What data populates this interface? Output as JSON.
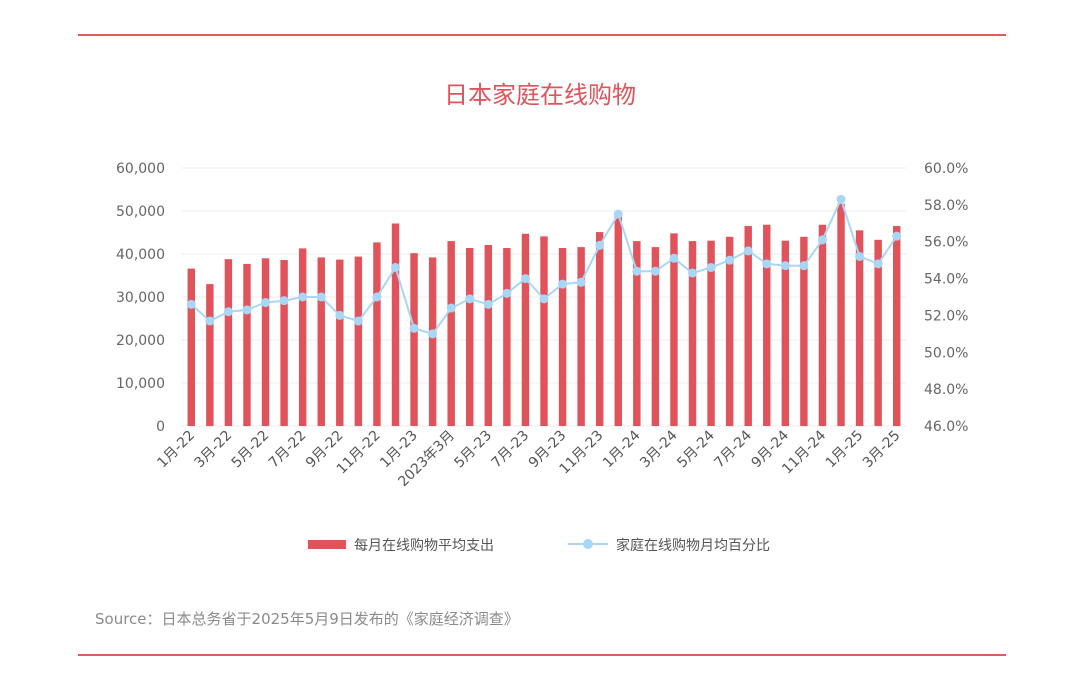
{
  "chart_data": {
    "type": "bar",
    "title": "日本家庭在线购物",
    "categories": [
      "1月-22",
      "2月-22",
      "3月-22",
      "4月-22",
      "5月-22",
      "6月-22",
      "7月-22",
      "8月-22",
      "9月-22",
      "10月-22",
      "11月-22",
      "12月-22",
      "1月-23",
      "2月-23",
      "2023年3月",
      "4月-23",
      "5月-23",
      "6月-23",
      "7月-23",
      "8月-23",
      "9月-23",
      "10月-23",
      "11月-23",
      "12月-23",
      "1月-24",
      "2月-24",
      "3月-24",
      "4月-24",
      "5月-24",
      "6月-24",
      "7月-24",
      "8月-24",
      "9月-24",
      "10月-24",
      "11月-24",
      "12月-24",
      "1月-25",
      "2月-25",
      "3月-25"
    ],
    "tick_labels": [
      "1月-22",
      "3月-22",
      "5月-22",
      "7月-22",
      "9月-22",
      "11月-22",
      "1月-23",
      "2023年3月",
      "5月-23",
      "7月-23",
      "9月-23",
      "11月-23",
      "1月-24",
      "3月-24",
      "5月-24",
      "7月-24",
      "9月-24",
      "11月-24",
      "1月-25",
      "3月-25"
    ],
    "series": [
      {
        "name": "每月在线购物平均支出",
        "type": "bar",
        "axis": "left",
        "color": "#e0535a",
        "values": [
          36600,
          33000,
          38800,
          37700,
          39000,
          38600,
          41300,
          39200,
          38700,
          39400,
          42700,
          47100,
          40200,
          39200,
          43000,
          41400,
          42100,
          41400,
          44700,
          44100,
          41400,
          41600,
          45100,
          48700,
          43000,
          41600,
          44800,
          43000,
          43100,
          44000,
          46500,
          46800,
          43100,
          44000,
          46800,
          51700,
          45500,
          43300,
          46500
        ]
      },
      {
        "name": "家庭在线购物月均百分比",
        "type": "line",
        "axis": "right",
        "color": "#a9d6f5",
        "values": [
          52.6,
          51.7,
          52.2,
          52.3,
          52.7,
          52.8,
          53.0,
          53.0,
          52.0,
          51.7,
          53.0,
          54.6,
          51.3,
          51.0,
          52.4,
          52.9,
          52.6,
          53.2,
          54.0,
          52.9,
          53.7,
          53.8,
          55.8,
          57.5,
          54.4,
          54.4,
          55.1,
          54.3,
          54.6,
          55.0,
          55.5,
          54.8,
          54.7,
          54.7,
          56.1,
          58.3,
          55.2,
          54.8,
          56.3
        ]
      }
    ],
    "y_left": {
      "min": 0,
      "max": 60000,
      "step": 10000,
      "tick_labels": [
        "0",
        "10,000",
        "20,000",
        "30,000",
        "40,000",
        "50,000",
        "60,000"
      ]
    },
    "y_right": {
      "min": 46,
      "max": 60,
      "step": 2,
      "tick_labels": [
        "46.0%",
        "48.0%",
        "50.0%",
        "52.0%",
        "54.0%",
        "56.0%",
        "58.0%",
        "60.0%"
      ]
    },
    "grid": true,
    "legend": "bottom"
  },
  "source": "Source：日本总务省于2025年5月9日发布的《家庭经济调查》"
}
